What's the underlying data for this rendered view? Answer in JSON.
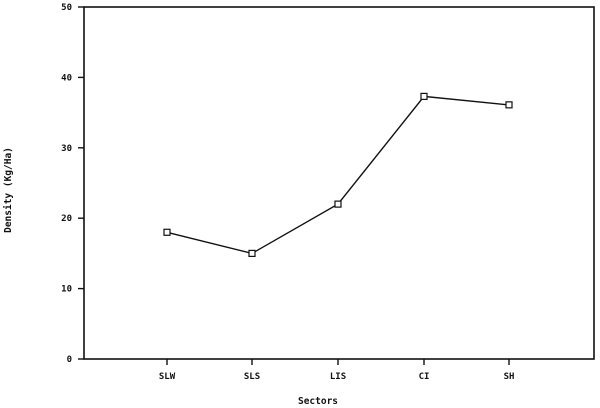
{
  "chart_data": {
    "type": "line",
    "title": "",
    "xlabel": "Sectors",
    "ylabel": "Density (Kg/Ha)",
    "categories": [
      "SLW",
      "SLS",
      "LIS",
      "CI",
      "SH"
    ],
    "series": [
      {
        "values": [
          18,
          15,
          22,
          37.3,
          36.1
        ]
      }
    ],
    "ylim": [
      0,
      50
    ],
    "yticks": [
      "0",
      "10",
      "20",
      "30",
      "40",
      "50"
    ],
    "grid": false,
    "legend": "none",
    "marker": "open-square",
    "line_color": "#111111"
  }
}
